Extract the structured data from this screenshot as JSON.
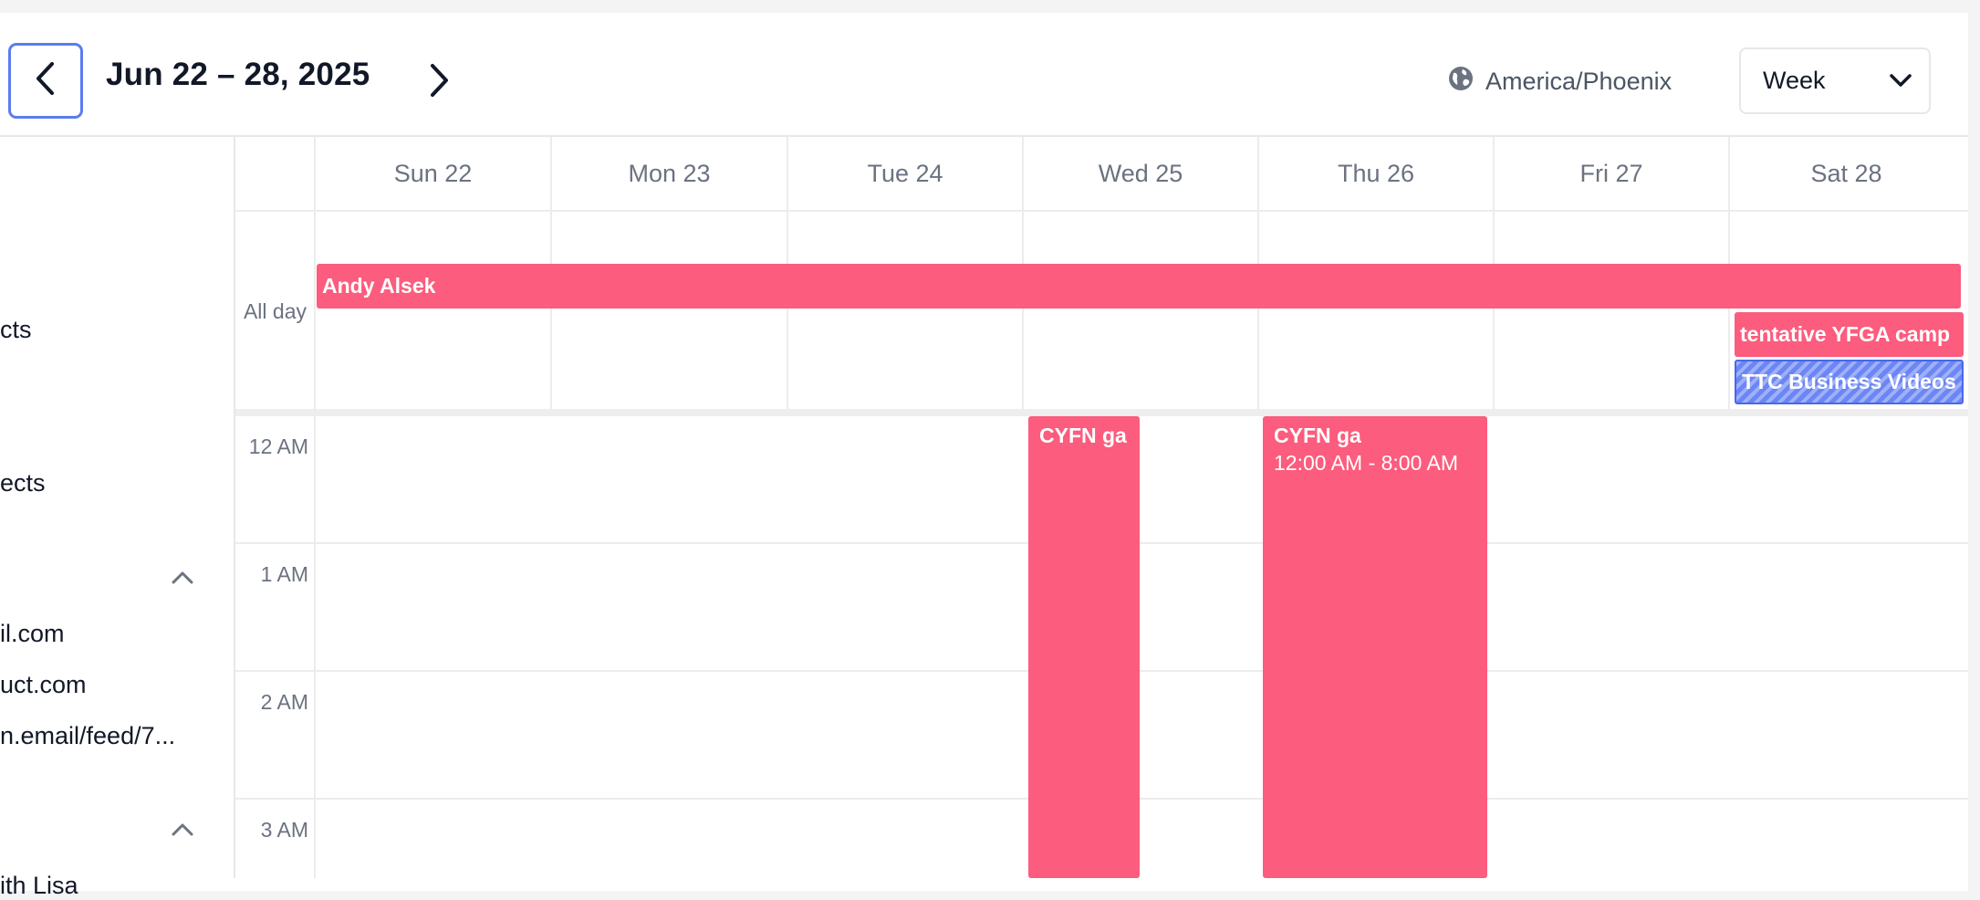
{
  "header": {
    "range_title": "Jun 22 – 28, 2025",
    "timezone": "America/Phoenix",
    "view": "Week",
    "icons": {
      "prev": "chevron-left-icon",
      "next": "chevron-right-icon",
      "timezone": "globe-icon",
      "view_dropdown": "chevron-down-icon"
    }
  },
  "sidebar": {
    "partial_items": [
      "cts",
      "ects",
      "il.com",
      "uct.com",
      "n.email/feed/7...",
      "ith Lisa"
    ],
    "icons": {
      "collapse": "chevron-up-icon"
    }
  },
  "days": [
    "Sun 22",
    "Mon 23",
    "Tue 24",
    "Wed 25",
    "Thu 26",
    "Fri 27",
    "Sat 28"
  ],
  "all_day_label": "All day",
  "hours": [
    "12 AM",
    "1 AM",
    "2 AM",
    "3 AM"
  ],
  "all_day_events": [
    {
      "title": "Andy Alsek",
      "start_day": "Sun 22",
      "end_day": "Sat 28"
    },
    {
      "title": "tentative YFGA camp",
      "day": "Sat 28"
    },
    {
      "title": "TTC Business Videos",
      "day": "Sat 28",
      "style": "hatched"
    }
  ],
  "timed_events": [
    {
      "title": "CYFN ga",
      "day": "Wed 25"
    },
    {
      "title": "CYFN ga",
      "day": "Thu 26",
      "time": "12:00 AM - 8:00 AM"
    }
  ],
  "colors": {
    "event": "#fc5c7d",
    "tentative_event": "#6b86f5",
    "focus_ring": "#5b7cf0"
  }
}
